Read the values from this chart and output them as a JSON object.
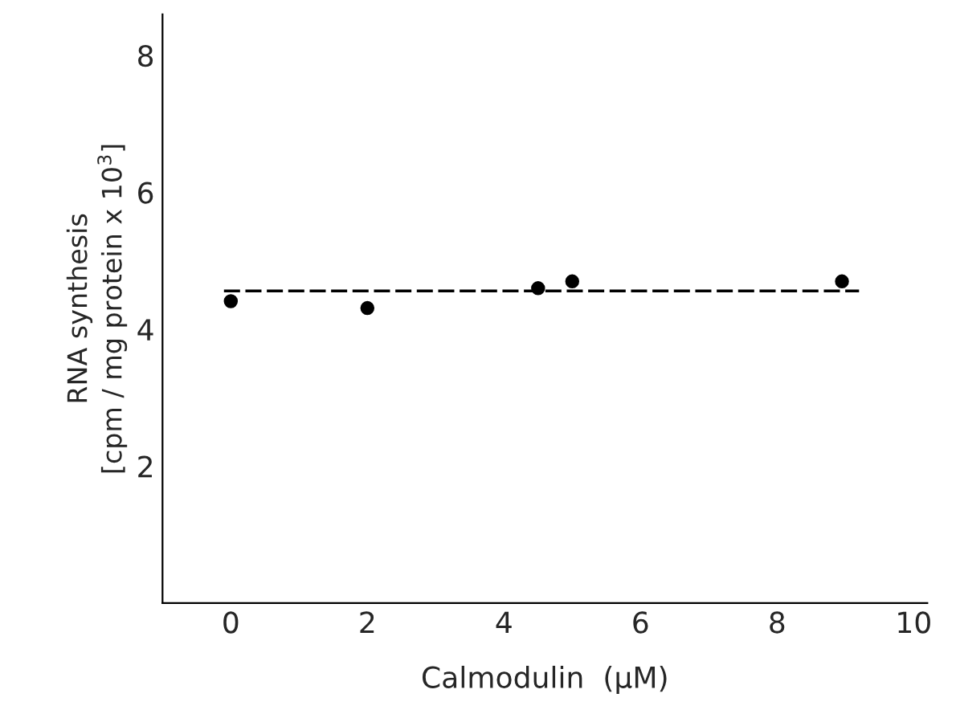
{
  "chart_data": {
    "type": "scatter",
    "xlabel": "Calmodulin  (µM)",
    "ylabel": "RNA synthesis\n[cpm / mg protein x 10$^{3}$]",
    "xlim": [
      -1,
      10.2
    ],
    "ylim": [
      0,
      8.6
    ],
    "xticks": [
      0,
      2,
      4,
      6,
      8,
      10
    ],
    "yticks": [
      2,
      4,
      6,
      8
    ],
    "grid": false,
    "legend": false,
    "series": [
      {
        "color": "#000000",
        "marker": "circle",
        "x": [
          0,
          2,
          4.5,
          5,
          8.95
        ],
        "values": [
          4.41,
          4.31,
          4.6,
          4.7,
          4.7
        ]
      },
      {
        "type": "line",
        "color": "#000000",
        "marker": "none",
        "line_style": "dashed",
        "x": [
          -0.1,
          9.2
        ],
        "values": [
          4.56,
          4.56
        ]
      }
    ]
  }
}
